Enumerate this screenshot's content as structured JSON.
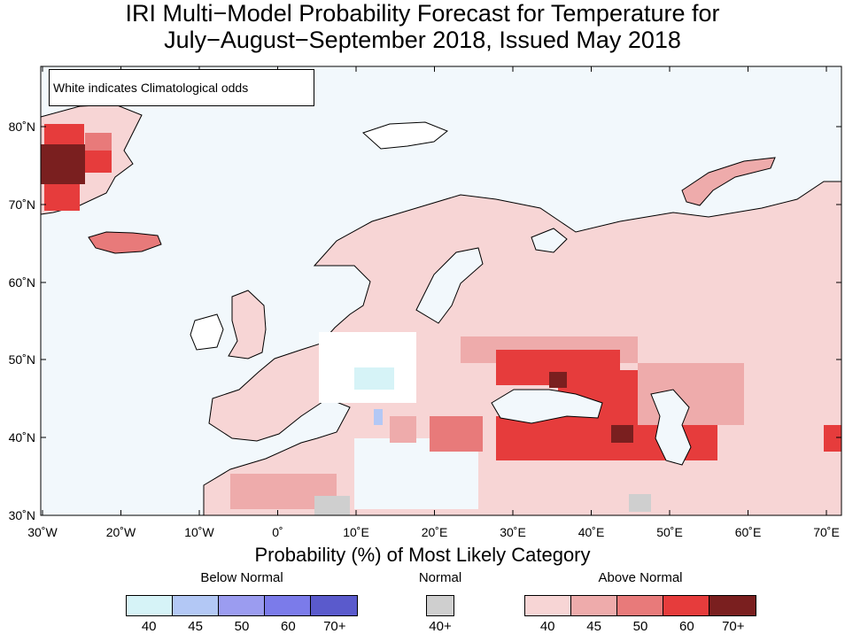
{
  "title_line1": "IRI Multi−Model Probability Forecast for Temperature for",
  "title_line2": "July−August−September 2018, Issued May 2018",
  "note": "White indicates Climatological odds",
  "lat_labels": [
    "30˚N",
    "40˚N",
    "50˚N",
    "60˚N",
    "70˚N",
    "80˚N"
  ],
  "lon_labels": [
    "30˚W",
    "20˚W",
    "10˚W",
    "0˚",
    "10˚E",
    "20˚E",
    "30˚E",
    "40˚E",
    "50˚E",
    "60˚E",
    "70˚E"
  ],
  "legend": {
    "title": "Probability (%) of Most Likely Category",
    "below": {
      "label": "Below Normal",
      "ticks": [
        "40",
        "45",
        "50",
        "60",
        "70+"
      ],
      "colors": [
        "#d6f3f7",
        "#b3c8f5",
        "#9b9cf0",
        "#7b7bea",
        "#5a5acc"
      ]
    },
    "normal": {
      "label": "Normal",
      "ticks": [
        "40+"
      ],
      "colors": [
        "#cfcfcf"
      ]
    },
    "above": {
      "label": "Above Normal",
      "ticks": [
        "40",
        "45",
        "50",
        "60",
        "70+"
      ],
      "colors": [
        "#f7d5d5",
        "#eeabab",
        "#e87a7a",
        "#e63c3c",
        "#7a1f1f"
      ]
    }
  },
  "map_colors": {
    "ocean": "#f2f8fc",
    "land_climatology": "#ffffff",
    "coast": "#000000",
    "border": "#9a9a9a"
  }
}
